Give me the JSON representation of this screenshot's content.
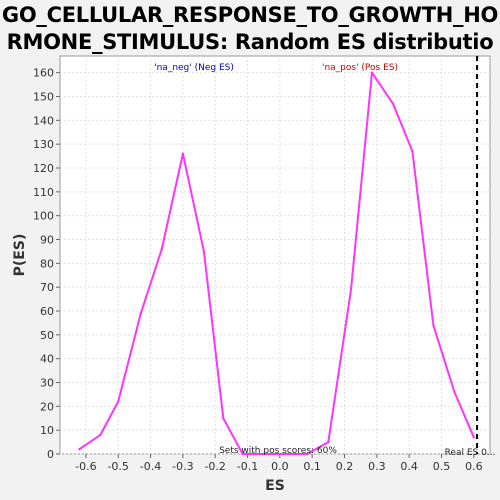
{
  "chart_data": {
    "type": "line",
    "title": "GO_CELLULAR_RESPONSE_TO_GROWTH_HORMONE_STIMULUS: Random ES distribution",
    "xlabel": "ES",
    "ylabel": "P(ES)",
    "xlim": [
      -0.68,
      0.65
    ],
    "ylim": [
      0,
      167
    ],
    "xticks": [
      -0.6,
      -0.5,
      -0.4,
      -0.3,
      -0.2,
      -0.1,
      0.0,
      0.1,
      0.2,
      0.3,
      0.4,
      0.5,
      0.6
    ],
    "xtick_labels": [
      "-0.6",
      "-0.5",
      "-0.4",
      "-0.3",
      "-0.2",
      "-0.1",
      "0.0",
      "0.1",
      "0.2",
      "0.3",
      "0.4",
      "0.5",
      "0.6"
    ],
    "yticks": [
      0,
      10,
      20,
      30,
      40,
      50,
      60,
      70,
      80,
      90,
      100,
      110,
      120,
      130,
      140,
      150,
      160
    ],
    "ytick_labels": [
      "0",
      "10",
      "20",
      "30",
      "40",
      "50",
      "60",
      "70",
      "80",
      "90",
      "100",
      "110",
      "120",
      "130",
      "140",
      "150",
      "160"
    ],
    "grid": true,
    "series": [
      {
        "color": "#ff33ff",
        "x": [
          -0.62,
          -0.555,
          -0.5,
          -0.43,
          -0.365,
          -0.3,
          -0.235,
          -0.175,
          -0.115,
          -0.05,
          0.01,
          0.085,
          0.15,
          0.22,
          0.285,
          0.35,
          0.41,
          0.475,
          0.54,
          0.6
        ],
        "y": [
          2,
          8,
          22,
          59,
          86,
          126,
          85,
          15,
          0,
          0,
          0,
          0,
          5,
          69,
          160,
          147,
          127,
          54,
          26,
          7
        ]
      }
    ],
    "annotations": {
      "neg_label": "'na_neg' (Neg ES)",
      "pos_label": "'na_pos' (Pos ES)",
      "pos_scores": "Sets with pos scores: 60%",
      "real_es": "Real ES 0...",
      "real_es_value": 0.61,
      "neg_color": "#0000cc",
      "pos_color": "#cc0000",
      "line_color": "#ff33ff"
    }
  }
}
